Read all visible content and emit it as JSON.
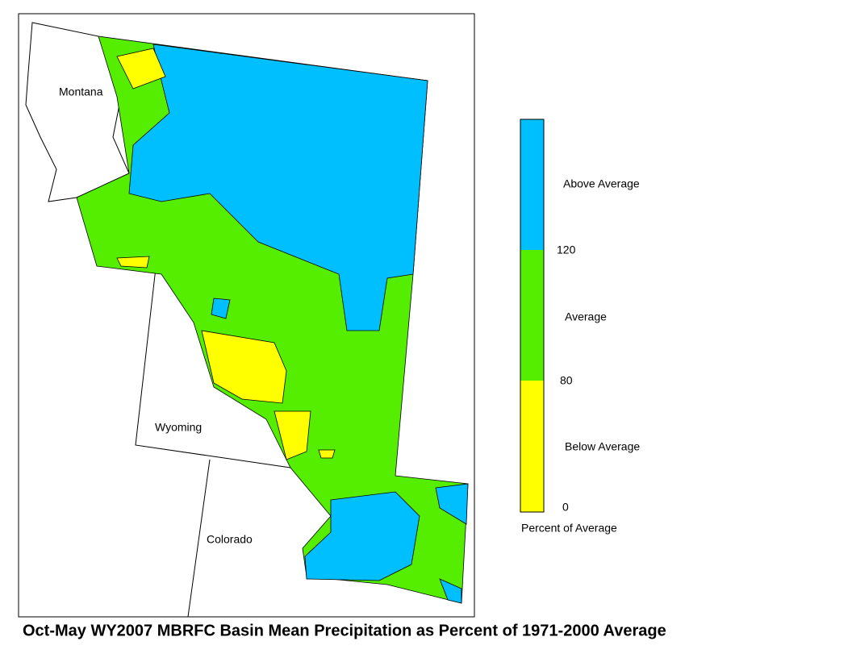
{
  "map": {
    "title": "Oct-May WY2007 MBRFC Basin Mean Precipitation as Percent of 1971-2000 Average",
    "states": [
      "Montana",
      "Wyoming",
      "Colorado"
    ],
    "legend": {
      "title": "Percent of Average",
      "classes": [
        {
          "label": "Above Average",
          "color": "#00bfff"
        },
        {
          "label": "Average",
          "color": "#55ee00"
        },
        {
          "label": "Below Average",
          "color": "#ffff00"
        }
      ],
      "breaks": [
        120,
        80,
        0
      ]
    }
  }
}
